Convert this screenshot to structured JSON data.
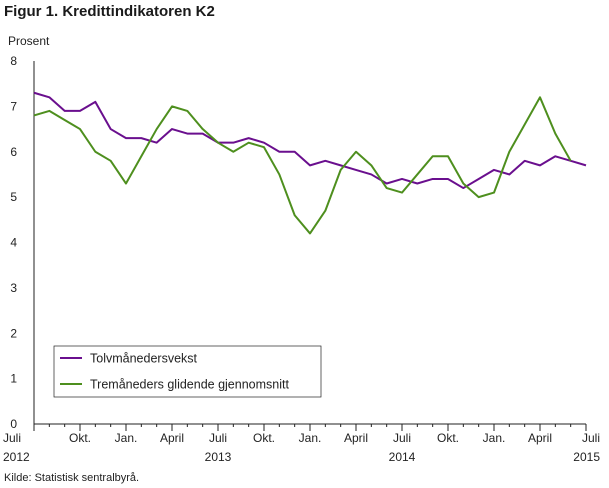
{
  "chart_data": {
    "type": "line",
    "title": "Figur 1. Kredittindikatoren K2",
    "ylabel": "Prosent",
    "source": "Kilde: Statistisk sentralbyrå.",
    "ylim": [
      0,
      8
    ],
    "yticks": [
      0,
      1,
      2,
      3,
      4,
      5,
      6,
      7,
      8
    ],
    "grid": false,
    "legend_position": "bottom-left",
    "x_start": "2012-07",
    "x_end": "2015-07",
    "x_tick_labels": [
      {
        "month": "2012-07",
        "label": "Juli",
        "year": "2012"
      },
      {
        "month": "2012-10",
        "label": "Okt.",
        "year": ""
      },
      {
        "month": "2013-01",
        "label": "Jan.",
        "year": ""
      },
      {
        "month": "2013-04",
        "label": "April",
        "year": ""
      },
      {
        "month": "2013-07",
        "label": "Juli",
        "year": "2013"
      },
      {
        "month": "2013-10",
        "label": "Okt.",
        "year": ""
      },
      {
        "month": "2014-01",
        "label": "Jan.",
        "year": ""
      },
      {
        "month": "2014-04",
        "label": "April",
        "year": ""
      },
      {
        "month": "2014-07",
        "label": "Juli",
        "year": "2014"
      },
      {
        "month": "2014-10",
        "label": "Okt.",
        "year": ""
      },
      {
        "month": "2015-01",
        "label": "Jan.",
        "year": ""
      },
      {
        "month": "2015-04",
        "label": "April",
        "year": ""
      },
      {
        "month": "2015-07",
        "label": "Juli",
        "year": "2015"
      }
    ],
    "series": [
      {
        "name": "Tolvmånedersvekst",
        "color": "#6a0f8e",
        "x": [
          "2012-07",
          "2012-08",
          "2012-09",
          "2012-10",
          "2012-11",
          "2012-12",
          "2013-01",
          "2013-02",
          "2013-03",
          "2013-04",
          "2013-05",
          "2013-06",
          "2013-07",
          "2013-08",
          "2013-09",
          "2013-10",
          "2013-11",
          "2013-12",
          "2014-01",
          "2014-02",
          "2014-03",
          "2014-04",
          "2014-05",
          "2014-06",
          "2014-07",
          "2014-08",
          "2014-09",
          "2014-10",
          "2014-11",
          "2014-12",
          "2015-01",
          "2015-02",
          "2015-03",
          "2015-04",
          "2015-05",
          "2015-06",
          "2015-07"
        ],
        "values": [
          7.3,
          7.2,
          6.9,
          6.9,
          7.1,
          6.5,
          6.3,
          6.3,
          6.2,
          6.5,
          6.4,
          6.4,
          6.2,
          6.2,
          6.3,
          6.2,
          6.0,
          6.0,
          5.7,
          5.8,
          5.7,
          5.6,
          5.5,
          5.3,
          5.4,
          5.3,
          5.4,
          5.4,
          5.2,
          5.4,
          5.6,
          5.5,
          5.8,
          5.7,
          5.9,
          5.8,
          5.7
        ]
      },
      {
        "name": "Tremåneders glidende gjennomsnitt",
        "color": "#4e8f1e",
        "x": [
          "2012-07",
          "2012-08",
          "2012-09",
          "2012-10",
          "2012-11",
          "2012-12",
          "2013-01",
          "2013-02",
          "2013-03",
          "2013-04",
          "2013-05",
          "2013-06",
          "2013-07",
          "2013-08",
          "2013-09",
          "2013-10",
          "2013-11",
          "2013-12",
          "2014-01",
          "2014-02",
          "2014-03",
          "2014-04",
          "2014-05",
          "2014-06",
          "2014-07",
          "2014-08",
          "2014-09",
          "2014-10",
          "2014-11",
          "2014-12",
          "2015-01",
          "2015-02",
          "2015-03",
          "2015-04",
          "2015-05",
          "2015-06"
        ],
        "values": [
          6.8,
          6.9,
          6.7,
          6.5,
          6.0,
          5.8,
          5.3,
          5.9,
          6.5,
          7.0,
          6.9,
          6.5,
          6.2,
          6.0,
          6.2,
          6.1,
          5.5,
          4.6,
          4.2,
          4.7,
          5.6,
          6.0,
          5.7,
          5.2,
          5.1,
          5.5,
          5.9,
          5.9,
          5.3,
          5.0,
          5.1,
          6.0,
          6.6,
          7.2,
          6.4,
          5.8
        ]
      }
    ]
  }
}
